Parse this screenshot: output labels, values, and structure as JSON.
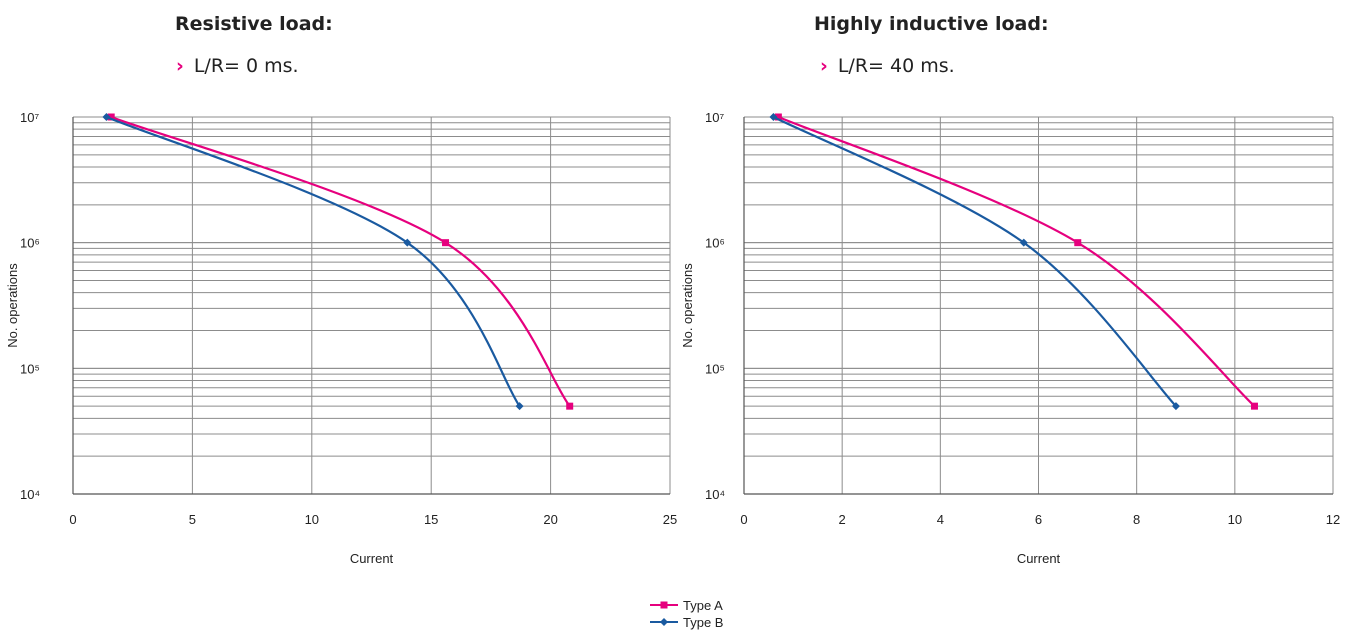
{
  "panels": [
    {
      "title": "Resistive load:",
      "subtitle": "L/R= 0 ms."
    },
    {
      "title": "Highly inductive load:",
      "subtitle": "L/R= 40 ms."
    }
  ],
  "colors": {
    "type_a": "#e6007e",
    "type_b": "#1a5aa0",
    "grid": "#8c8c8c",
    "accent": "#e6007e"
  },
  "chart_data": [
    {
      "type": "line",
      "xlabel": "Current",
      "ylabel": "No. operations",
      "xlim": [
        0,
        25
      ],
      "xticks": [
        0,
        5,
        10,
        15,
        20,
        25
      ],
      "ylim": [
        10000,
        10000000
      ],
      "yscale": "log",
      "ytick_labels": [
        "10⁴",
        "10⁵",
        "10⁶",
        "10⁷"
      ],
      "grid": true,
      "series": [
        {
          "name": "Type A",
          "marker": "square",
          "x": [
            1.6,
            15.6,
            20.8
          ],
          "y": [
            10000000,
            1000000,
            50000
          ]
        },
        {
          "name": "Type B",
          "marker": "diamond",
          "x": [
            1.4,
            14.0,
            18.7
          ],
          "y": [
            10000000,
            1000000,
            50000
          ]
        }
      ]
    },
    {
      "type": "line",
      "xlabel": "Current",
      "ylabel": "No. operations",
      "xlim": [
        0,
        12
      ],
      "xticks": [
        0,
        2,
        4,
        6,
        8,
        10,
        12
      ],
      "ylim": [
        10000,
        10000000
      ],
      "yscale": "log",
      "ytick_labels": [
        "10⁴",
        "10⁵",
        "10⁶",
        "10⁷"
      ],
      "grid": true,
      "series": [
        {
          "name": "Type A",
          "marker": "square",
          "x": [
            0.7,
            6.8,
            10.4
          ],
          "y": [
            10000000,
            1000000,
            50000
          ]
        },
        {
          "name": "Type B",
          "marker": "diamond",
          "x": [
            0.6,
            5.7,
            8.8
          ],
          "y": [
            10000000,
            1000000,
            50000
          ]
        }
      ]
    }
  ],
  "legend": {
    "position": "bottom-center",
    "items": [
      "Type A",
      "Type B"
    ]
  }
}
